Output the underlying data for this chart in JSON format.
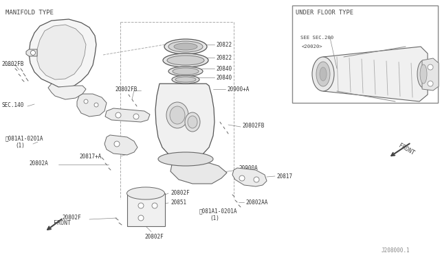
{
  "bg_color": "#ffffff",
  "line_color": "#444444",
  "text_color": "#333333",
  "manifold_type_label": "MANIFOLD TYPE",
  "under_floor_label": "UNDER FLOOR TYPE",
  "see_sec_label": "SEE SEC.200",
  "see_sec_sub": "<20020>",
  "front_label": "FRONT",
  "ref_number": "J208000.1",
  "font_size": 5.5,
  "lc": "#444444"
}
